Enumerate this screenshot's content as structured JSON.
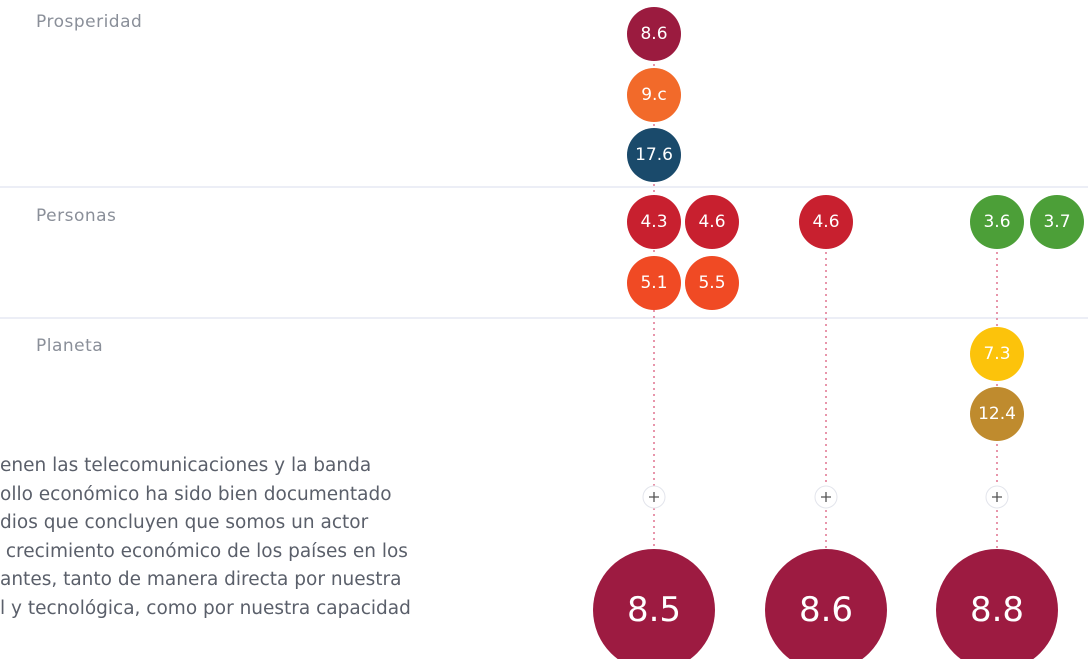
{
  "rows": [
    "Prosperidad",
    "Personas",
    "Planeta"
  ],
  "columns": [
    {
      "items": [
        "8.6",
        "9.c",
        "17.6",
        "4.3",
        "4.6",
        "5.1",
        "5.5"
      ],
      "total": "8.5"
    },
    {
      "items": [
        "4.6"
      ],
      "total": "8.6"
    },
    {
      "items": [
        "3.6",
        "3.7",
        "7.3",
        "12.4"
      ],
      "total": "8.8"
    }
  ],
  "paragraph": [
    "enen las telecomunicaciones y la banda",
    "ollo económico ha sido bien documentado",
    "dios que concluyen que somos un actor",
    " crecimiento económico de los países en los",
    "antes, tanto de manera directa por nuestra",
    "l y tecnológica, como por nuestra capacidad"
  ]
}
